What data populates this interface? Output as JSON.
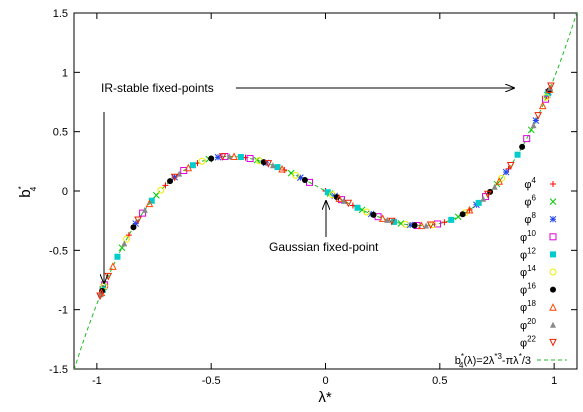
{
  "chart_data": {
    "type": "scatter",
    "title": "",
    "xlabel": "λ*",
    "ylabel": "b*4",
    "xlim": [
      -1.1,
      1.1
    ],
    "ylim": [
      -1.5,
      1.5
    ],
    "xticks": [
      -1,
      -0.5,
      0,
      0.5,
      1
    ],
    "xtick_labels": [
      "-1",
      "-0.5",
      "0",
      "0.5",
      "1"
    ],
    "yticks": [
      -1.5,
      -1,
      -0.5,
      0,
      0.5,
      1,
      1.5
    ],
    "ytick_labels": [
      "-1.5",
      "-1",
      "-0.5",
      "0",
      "0.5",
      "1",
      "1.5"
    ],
    "grid": false,
    "legend_position": "right",
    "curve": {
      "name": "b*4(λ)=2λ*3-πλ*/3",
      "label_parts": {
        "a": "b",
        "a_sup": "*",
        "a_sub": "4",
        "b": "(λ)=2λ",
        "b_sup": "*3",
        "c": "-πλ",
        "c_sup": "*",
        "d": "/3"
      },
      "color": "#22bb22",
      "coefficients": {
        "cubic": 2,
        "linear": -1.0472
      }
    },
    "series": [
      {
        "name": "φ4",
        "label_main": "φ",
        "label_sup": "4",
        "marker": "plus",
        "color": "#ff0000",
        "x": [
          -0.972,
          -0.86,
          -0.7,
          -0.56,
          -0.35,
          -0.18,
          0.0,
          0.12,
          0.3,
          0.52,
          0.63,
          0.8,
          0.968
        ]
      },
      {
        "name": "φ6",
        "label_main": "φ",
        "label_sup": "6",
        "marker": "x",
        "color": "#00cc00",
        "x": [
          -0.97,
          -0.89,
          -0.74,
          -0.51,
          -0.3,
          -0.15,
          0.02,
          0.16,
          0.33,
          0.58,
          0.75,
          0.9,
          0.97
        ]
      },
      {
        "name": "φ8",
        "label_main": "φ",
        "label_sup": "8",
        "marker": "star",
        "color": "#2244ee",
        "x": [
          -0.974,
          -0.83,
          -0.66,
          -0.47,
          -0.26,
          -0.11,
          0.04,
          0.2,
          0.37,
          0.66,
          0.79,
          0.92,
          0.975
        ]
      },
      {
        "name": "φ10",
        "label_main": "φ",
        "label_sup": "10",
        "marker": "square",
        "color": "#dd00dd",
        "x": [
          -0.966,
          -0.8,
          -0.62,
          -0.44,
          -0.33,
          -0.07,
          0.07,
          0.23,
          0.4,
          0.49,
          0.7,
          0.88,
          0.962
        ]
      },
      {
        "name": "φ12",
        "label_main": "φ",
        "label_sup": "12",
        "marker": "filled-square",
        "color": "#00cccc",
        "x": [
          -0.975,
          -0.91,
          -0.76,
          -0.58,
          -0.37,
          -0.21,
          0.01,
          0.14,
          0.3,
          0.55,
          0.67,
          0.84,
          0.973
        ]
      },
      {
        "name": "φ14",
        "label_main": "φ",
        "label_sup": "14",
        "marker": "circle",
        "color": "#eeee00",
        "x": [
          -0.968,
          -0.87,
          -0.72,
          -0.54,
          -0.29,
          -0.13,
          0.03,
          0.18,
          0.35,
          0.47,
          0.61,
          0.77,
          0.966
        ]
      },
      {
        "name": "φ16",
        "label_main": "φ",
        "label_sup": "16",
        "marker": "filled-circle",
        "color": "#000000",
        "x": [
          -0.977,
          -0.84,
          -0.68,
          -0.5,
          -0.27,
          -0.09,
          0.05,
          0.21,
          0.39,
          0.6,
          0.72,
          0.86,
          0.978
        ]
      },
      {
        "name": "φ18",
        "label_main": "φ",
        "label_sup": "18",
        "marker": "triangle",
        "color": "#ff4400",
        "x": [
          -0.98,
          -0.93,
          -0.77,
          -0.6,
          -0.4,
          -0.19,
          0.06,
          0.25,
          0.42,
          0.63,
          0.76,
          0.95,
          0.98
        ]
      },
      {
        "name": "φ20",
        "label_main": "φ",
        "label_sup": "20",
        "marker": "filled-triangle",
        "color": "#888888",
        "x": [
          -0.983,
          -0.88,
          -0.79,
          -0.64,
          -0.42,
          -0.23,
          0.08,
          0.27,
          0.44,
          0.69,
          0.74,
          0.91,
          0.983
        ]
      },
      {
        "name": "φ22",
        "label_main": "φ",
        "label_sup": "22",
        "marker": "inv-triangle",
        "color": "#ee2200",
        "x": [
          -0.986,
          -0.95,
          -0.82,
          -0.66,
          -0.45,
          -0.25,
          0.1,
          0.29,
          0.46,
          0.71,
          0.81,
          0.93,
          0.986
        ]
      }
    ],
    "annotations": [
      {
        "name": "ir-stable",
        "text": "IR-stable fixed-points"
      },
      {
        "name": "gaussian",
        "text": "Gaussian fixed-point"
      }
    ]
  }
}
